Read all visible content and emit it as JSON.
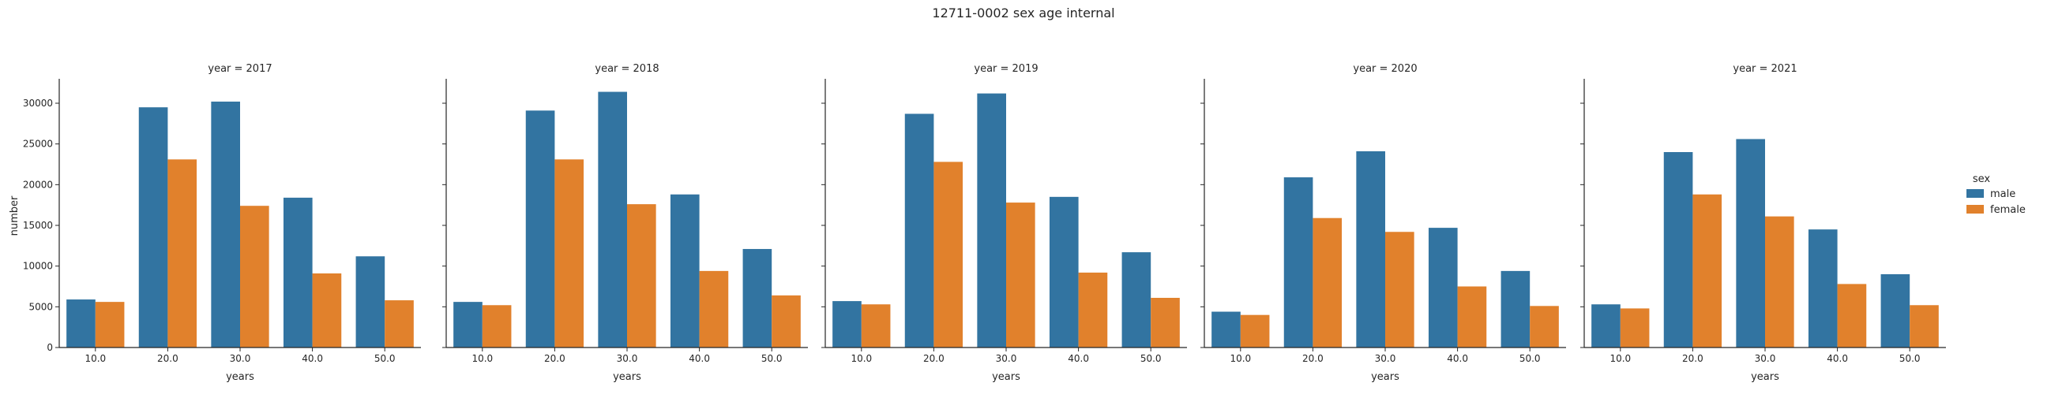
{
  "chart_data": {
    "type": "bar",
    "title": "12711-0002 sex age internal",
    "xlabel": "years",
    "ylabel": "number",
    "categories": [
      "10.0",
      "20.0",
      "30.0",
      "40.0",
      "50.0"
    ],
    "ylim": [
      0,
      33000
    ],
    "yticks": [
      0,
      5000,
      10000,
      15000,
      20000,
      25000,
      30000
    ],
    "grid": false,
    "legend": {
      "title": "sex",
      "placement": "right",
      "entries": [
        {
          "name": "male",
          "color": "#3274a1"
        },
        {
          "name": "female",
          "color": "#e1812c"
        }
      ]
    },
    "facets": [
      {
        "title": "year = 2017",
        "series": [
          {
            "name": "male",
            "values": [
              5900,
              29500,
              30200,
              18400,
              11200
            ]
          },
          {
            "name": "female",
            "values": [
              5600,
              23100,
              17400,
              9100,
              5800
            ]
          }
        ]
      },
      {
        "title": "year = 2018",
        "series": [
          {
            "name": "male",
            "values": [
              5600,
              29100,
              31400,
              18800,
              12100
            ]
          },
          {
            "name": "female",
            "values": [
              5200,
              23100,
              17600,
              9400,
              6400
            ]
          }
        ]
      },
      {
        "title": "year = 2019",
        "series": [
          {
            "name": "male",
            "values": [
              5700,
              28700,
              31200,
              18500,
              11700
            ]
          },
          {
            "name": "female",
            "values": [
              5300,
              22800,
              17800,
              9200,
              6100
            ]
          }
        ]
      },
      {
        "title": "year = 2020",
        "series": [
          {
            "name": "male",
            "values": [
              4400,
              20900,
              24100,
              14700,
              9400
            ]
          },
          {
            "name": "female",
            "values": [
              4000,
              15900,
              14200,
              7500,
              5100
            ]
          }
        ]
      },
      {
        "title": "year = 2021",
        "series": [
          {
            "name": "male",
            "values": [
              5300,
              24000,
              25600,
              14500,
              9000
            ]
          },
          {
            "name": "female",
            "values": [
              4800,
              18800,
              16100,
              7800,
              5200
            ]
          }
        ]
      }
    ]
  }
}
